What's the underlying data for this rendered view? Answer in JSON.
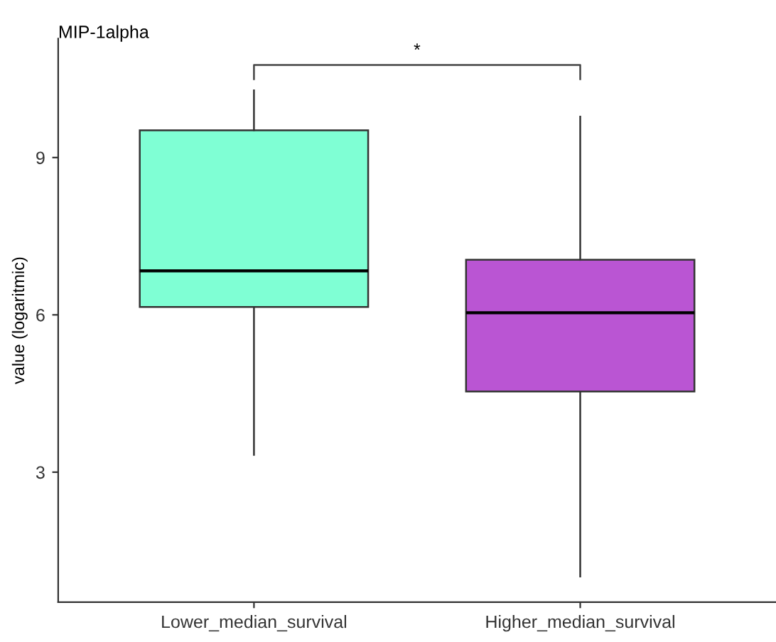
{
  "chart_data": {
    "type": "box",
    "title": "MIP-1alpha",
    "ylabel": "value (logaritmic)",
    "categories": [
      "Lower_median_survival",
      "Higher_median_survival"
    ],
    "colors": [
      "#7fffd4",
      "#ba55d3"
    ],
    "boxes": [
      {
        "low": 3.33,
        "q1": 6.15,
        "median": 6.84,
        "q3": 9.52,
        "high": 10.28
      },
      {
        "low": 1.01,
        "q1": 4.54,
        "median": 6.04,
        "q3": 7.05,
        "high": 9.78
      }
    ],
    "ylim": [
      0.52,
      11.27
    ],
    "yticks": [
      3,
      6,
      9
    ],
    "grid": false,
    "legend": false,
    "annotations": [
      "*"
    ]
  }
}
